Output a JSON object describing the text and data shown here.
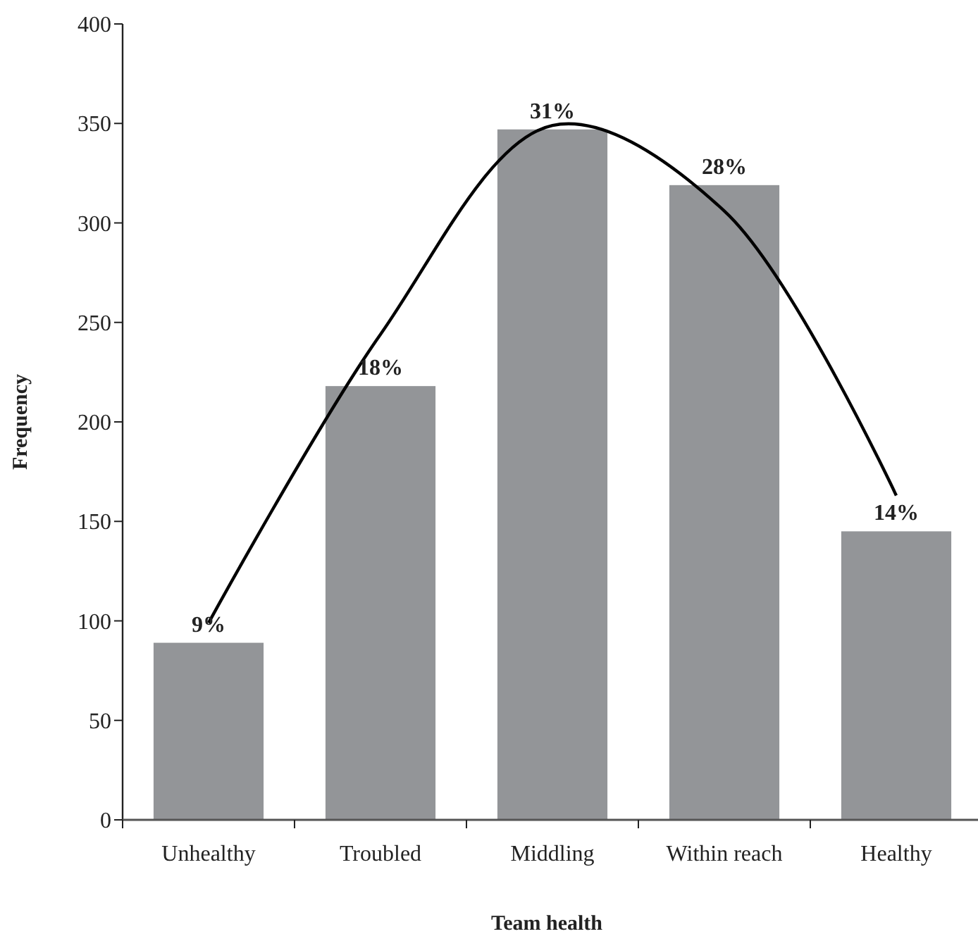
{
  "chart_data": {
    "type": "bar",
    "xlabel": "Team health",
    "ylabel": "Frequency",
    "categories": [
      "Unhealthy",
      "Troubled",
      "Middling",
      "Within reach",
      "Healthy"
    ],
    "ylim": [
      0,
      400
    ],
    "yticks": [
      0,
      50,
      100,
      150,
      200,
      250,
      300,
      350,
      400
    ],
    "grid": false,
    "annotations": [
      {
        "text": "9%",
        "x": "Unhealthy",
        "y": 89
      },
      {
        "text": "18%",
        "x": "Troubled",
        "y": 218
      },
      {
        "text": "31%",
        "x": "Middling",
        "y": 347
      },
      {
        "text": "28%",
        "x": "Within reach",
        "y": 319
      },
      {
        "text": "14%",
        "x": "Healthy",
        "y": 145
      }
    ],
    "series": [
      {
        "color": "#939598",
        "values": [
          89,
          218,
          347,
          319,
          145
        ]
      },
      {
        "type": "line",
        "color": "#000000",
        "values": [
          99,
          244,
          349,
          306,
          163
        ]
      }
    ]
  }
}
